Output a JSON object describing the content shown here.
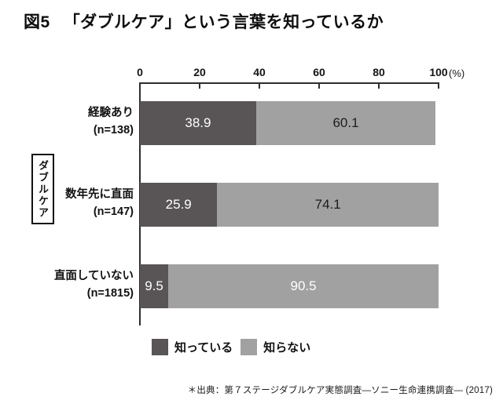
{
  "title": {
    "figure_no": "図5",
    "text": "「ダブルケア」という言葉を知っているか"
  },
  "side_label": "ダブルケア",
  "x_axis": {
    "tick_labels": [
      "0",
      "20",
      "40",
      "60",
      "80",
      "100"
    ],
    "unit": "(%)",
    "min": 0,
    "max": 100
  },
  "chart_data": {
    "type": "bar",
    "orientation": "horizontal",
    "stacked": true,
    "title": "「ダブルケア」という言葉を知っているか",
    "categories": [
      "経験あり (n=138)",
      "数年先に直面 (n=147)",
      "直面していない (n=1815)"
    ],
    "series": [
      {
        "name": "知っている",
        "color": "#595556",
        "values": [
          38.9,
          25.9,
          9.5
        ]
      },
      {
        "name": "知らない",
        "color": "#a1a1a1",
        "values": [
          60.1,
          74.1,
          90.5
        ]
      }
    ],
    "xlim": [
      0,
      100
    ],
    "xlabel": "(%)",
    "grid": false,
    "legend_position": "bottom"
  },
  "rows": [
    {
      "label_line1": "経験あり",
      "label_line2": "(n=138)",
      "segments": [
        {
          "value_label": "38.9",
          "pct": 38.9,
          "color": "#595556",
          "text_color": "#ffffff"
        },
        {
          "value_label": "60.1",
          "pct": 60.1,
          "color": "#a1a1a1",
          "text_color": "#1c1c1c"
        }
      ]
    },
    {
      "label_line1": "数年先に直面",
      "label_line2": "(n=147)",
      "segments": [
        {
          "value_label": "25.9",
          "pct": 25.9,
          "color": "#595556",
          "text_color": "#ffffff"
        },
        {
          "value_label": "74.1",
          "pct": 74.1,
          "color": "#a1a1a1",
          "text_color": "#1c1c1c"
        }
      ]
    },
    {
      "label_line1": "直面していない",
      "label_line2": "(n=1815)",
      "segments": [
        {
          "value_label": "9.5",
          "pct": 9.5,
          "color": "#595556",
          "text_color": "#ffffff"
        },
        {
          "value_label": "90.5",
          "pct": 90.5,
          "color": "#a1a1a1",
          "text_color": "#ffffff"
        }
      ]
    }
  ],
  "legend": [
    {
      "label": "知っている",
      "color": "#595556"
    },
    {
      "label": "知らない",
      "color": "#a1a1a1"
    }
  ],
  "source": "＊出典：第７ステージダブルケア実態調査―ソニー生命連携調査― (2017)"
}
